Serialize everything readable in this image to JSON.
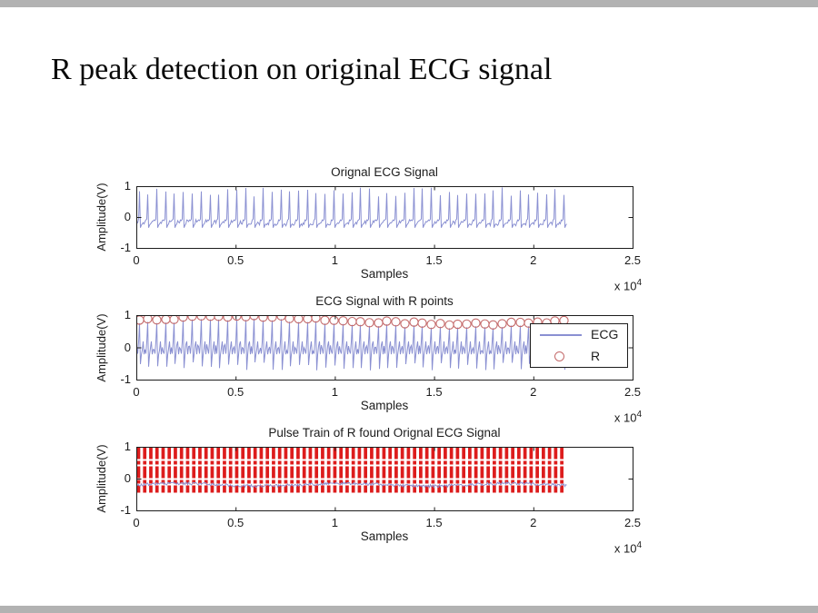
{
  "slide": {
    "title": "R peak detection on original ECG signal",
    "background": "#ffffff",
    "edge_strip_color": "#b2b2b2"
  },
  "colors": {
    "ecg_blue": "#8a90d2",
    "marker_red": "#c46a6a",
    "pulse_red": "#dd1c1c",
    "axis_black": "#1c1c1c"
  },
  "x_multiplier": {
    "base": "x 10",
    "exponent": "4"
  },
  "legend": {
    "entries": [
      {
        "label": "ECG",
        "marker": "line",
        "color": "#8a90d2"
      },
      {
        "label": "R",
        "marker": "circle",
        "color": "#c46a6a"
      }
    ]
  },
  "chart_data": [
    {
      "type": "line",
      "title": "Orignal ECG Signal",
      "xlabel": "Samples",
      "ylabel": "Amplitude(V)",
      "xlim": [
        0,
        25000
      ],
      "ylim": [
        -1,
        1
      ],
      "xtick_values": [
        0,
        5000,
        10000,
        15000,
        20000,
        25000
      ],
      "xtick_labels": [
        "0",
        "0.5",
        "1",
        "1.5",
        "2",
        "2.5"
      ],
      "ytick_labels": [
        "1",
        "0",
        "-1"
      ],
      "grid": false,
      "signal": "ecg_raw",
      "signal_end_sample": 21650,
      "baseline_v": -0.17,
      "r_peak_amp_range": [
        0.68,
        1.0
      ],
      "r_peaks": [
        120,
        560,
        1005,
        1460,
        1900,
        2340,
        2795,
        3250,
        3690,
        4140,
        4580,
        5030,
        5480,
        5920,
        6370,
        6810,
        7260,
        7700,
        8150,
        8600,
        9040,
        9490,
        9930,
        10380,
        10830,
        11270,
        11720,
        12160,
        12610,
        13060,
        13500,
        13950,
        14390,
        14840,
        15290,
        15730,
        16180,
        16620,
        17070,
        17520,
        17960,
        18410,
        18850,
        19300,
        19750,
        20190,
        20640,
        21080,
        21530
      ]
    },
    {
      "type": "line",
      "title": "ECG Signal with R points",
      "xlabel": "Samples",
      "ylabel": "Amplitude(V)",
      "xlim": [
        0,
        25000
      ],
      "ylim": [
        -1,
        1
      ],
      "xtick_values": [
        0,
        5000,
        10000,
        15000,
        20000,
        25000
      ],
      "xtick_labels": [
        "0",
        "0.5",
        "1",
        "1.5",
        "2",
        "2.5"
      ],
      "ytick_labels": [
        "1",
        "0",
        "-1"
      ],
      "grid": false,
      "legend_position": "right",
      "signal": "ecg_filtered",
      "signal_end_sample": 21650,
      "r_marker_v_range": [
        0.75,
        1.0
      ],
      "r_peaks": [
        120,
        560,
        1005,
        1460,
        1900,
        2340,
        2795,
        3250,
        3690,
        4140,
        4580,
        5030,
        5480,
        5920,
        6370,
        6810,
        7260,
        7700,
        8150,
        8600,
        9040,
        9490,
        9930,
        10380,
        10830,
        11270,
        11720,
        12160,
        12610,
        13060,
        13500,
        13950,
        14390,
        14840,
        15290,
        15730,
        16180,
        16620,
        17070,
        17520,
        17960,
        18410,
        18850,
        19300,
        19750,
        20190,
        20640,
        21080,
        21530
      ]
    },
    {
      "type": "line",
      "title": "Pulse Train of R found Orignal ECG Signal",
      "xlabel": "Samples",
      "ylabel": "Amplitude(V)",
      "xlim": [
        0,
        25000
      ],
      "ylim": [
        -1,
        1
      ],
      "xtick_values": [
        0,
        5000,
        10000,
        15000,
        20000,
        25000
      ],
      "xtick_labels": [
        "0",
        "0.5",
        "1",
        "1.5",
        "2",
        "2.5"
      ],
      "ytick_labels": [
        "1",
        "0",
        "-1"
      ],
      "grid": false,
      "signal": "ecg_baseline",
      "signal_end_sample": 21650,
      "pulse_train": {
        "count": 70,
        "first_sample": 90,
        "period_samples": 309,
        "width_samples": 170,
        "v_top": 1.0,
        "v_bottom": -0.43,
        "style": "dashed"
      }
    }
  ]
}
